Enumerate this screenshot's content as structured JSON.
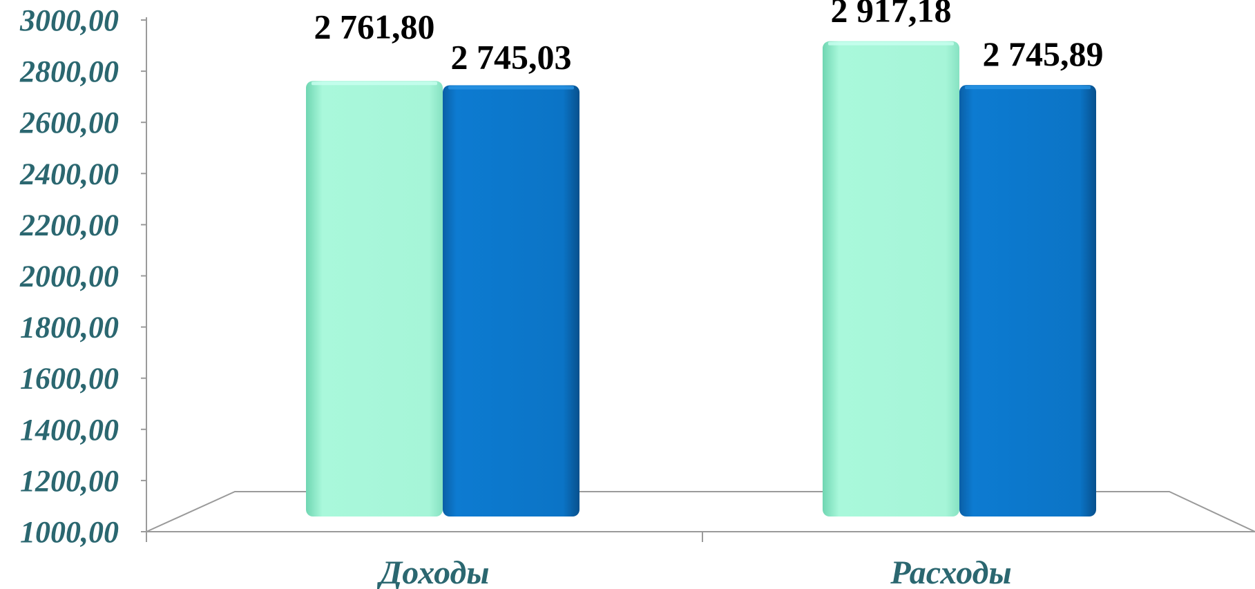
{
  "chart_data": {
    "type": "bar",
    "categories": [
      "Доходы",
      "Расходы"
    ],
    "series": [
      {
        "values": [
          2761.8,
          2917.18
        ],
        "labels": [
          "2 761,80",
          "2 917,18"
        ],
        "color": "#a8f7da"
      },
      {
        "values": [
          2745.03,
          2745.89
        ],
        "labels": [
          "2 745,03",
          "2 745,89"
        ],
        "color": "#0c78cc"
      }
    ],
    "ylim": [
      1000,
      3000
    ],
    "yticks": [
      "1000,00",
      "1200,00",
      "1400,00",
      "1600,00",
      "1800,00",
      "2000,00",
      "2200,00",
      "2400,00",
      "2600,00",
      "2800,00",
      "3000,00"
    ],
    "grid": false,
    "legend": "none"
  }
}
